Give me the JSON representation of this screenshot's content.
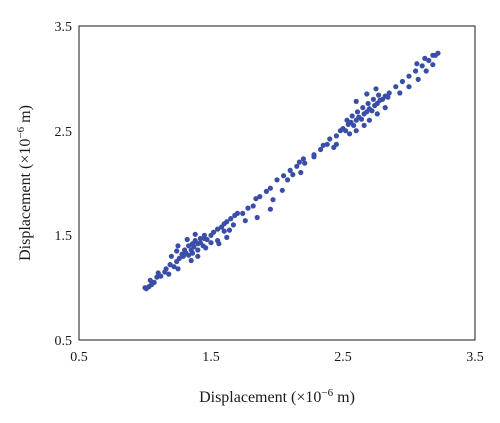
{
  "chart_data": {
    "type": "scatter",
    "title": "",
    "xlabel": "Displacement (×10",
    "ylabel": "Displacement (×10",
    "xlabel_exponent": "−6",
    "ylabel_exponent": "−6",
    "xlabel_unit": " m)",
    "ylabel_unit": " m)",
    "xlim": [
      0.5,
      3.5
    ],
    "ylim": [
      0.5,
      3.5
    ],
    "xticks": [
      "0.5",
      "1.5",
      "2.5",
      "3.5"
    ],
    "yticks": [
      "0.5",
      "1.5",
      "2.5",
      "3.5"
    ],
    "grid": false,
    "legend": "none",
    "marker_color": "#3a4ea8",
    "series": [
      {
        "values": [
          [
            1.0,
            1.0
          ],
          [
            1.01,
            0.99
          ],
          [
            1.03,
            1.01
          ],
          [
            1.05,
            1.03
          ],
          [
            1.04,
            1.07
          ],
          [
            1.07,
            1.05
          ],
          [
            1.09,
            1.1
          ],
          [
            1.12,
            1.11
          ],
          [
            1.1,
            1.14
          ],
          [
            1.16,
            1.18
          ],
          [
            1.19,
            1.22
          ],
          [
            1.22,
            1.2
          ],
          [
            1.24,
            1.25
          ],
          [
            1.26,
            1.28
          ],
          [
            1.29,
            1.3
          ],
          [
            1.31,
            1.33
          ],
          [
            1.33,
            1.31
          ],
          [
            1.35,
            1.36
          ],
          [
            1.37,
            1.39
          ],
          [
            1.4,
            1.42
          ],
          [
            1.42,
            1.43
          ],
          [
            1.45,
            1.47
          ],
          [
            1.47,
            1.46
          ],
          [
            1.5,
            1.5
          ],
          [
            1.52,
            1.53
          ],
          [
            1.55,
            1.56
          ],
          [
            1.58,
            1.58
          ],
          [
            1.6,
            1.61
          ],
          [
            1.62,
            1.63
          ],
          [
            1.65,
            1.66
          ],
          [
            1.68,
            1.69
          ],
          [
            1.7,
            1.71
          ],
          [
            1.3,
            1.36
          ],
          [
            1.33,
            1.4
          ],
          [
            1.36,
            1.42
          ],
          [
            1.38,
            1.45
          ],
          [
            1.42,
            1.47
          ],
          [
            1.45,
            1.5
          ],
          [
            1.28,
            1.32
          ],
          [
            1.36,
            1.33
          ],
          [
            1.4,
            1.36
          ],
          [
            1.44,
            1.4
          ],
          [
            1.5,
            1.43
          ],
          [
            1.2,
            1.3
          ],
          [
            1.24,
            1.35
          ],
          [
            1.15,
            1.15
          ],
          [
            1.18,
            1.13
          ],
          [
            1.25,
            1.18
          ],
          [
            1.46,
            1.38
          ],
          [
            1.55,
            1.45
          ],
          [
            1.6,
            1.54
          ],
          [
            1.64,
            1.55
          ],
          [
            1.67,
            1.6
          ],
          [
            1.74,
            1.71
          ],
          [
            1.78,
            1.76
          ],
          [
            1.84,
            1.85
          ],
          [
            1.87,
            1.87
          ],
          [
            1.92,
            1.92
          ],
          [
            1.95,
            1.95
          ],
          [
            2.0,
            2.03
          ],
          [
            2.05,
            2.07
          ],
          [
            2.1,
            2.12
          ],
          [
            2.15,
            2.16
          ],
          [
            2.2,
            2.23
          ],
          [
            2.28,
            2.27
          ],
          [
            2.35,
            2.36
          ],
          [
            2.4,
            2.42
          ],
          [
            2.45,
            2.45
          ],
          [
            1.76,
            1.64
          ],
          [
            1.82,
            1.78
          ],
          [
            1.85,
            1.67
          ],
          [
            1.95,
            1.75
          ],
          [
            1.97,
            1.84
          ],
          [
            2.04,
            1.93
          ],
          [
            2.08,
            2.03
          ],
          [
            2.12,
            2.08
          ],
          [
            2.18,
            2.1
          ],
          [
            2.17,
            2.2
          ],
          [
            2.21,
            2.19
          ],
          [
            2.28,
            2.25
          ],
          [
            2.33,
            2.32
          ],
          [
            2.38,
            2.37
          ],
          [
            2.45,
            2.37
          ],
          [
            2.43,
            2.34
          ],
          [
            2.48,
            2.5
          ],
          [
            2.5,
            2.52
          ],
          [
            2.52,
            2.5
          ],
          [
            2.54,
            2.56
          ],
          [
            2.56,
            2.58
          ],
          [
            2.58,
            2.55
          ],
          [
            2.6,
            2.6
          ],
          [
            2.62,
            2.63
          ],
          [
            2.64,
            2.61
          ],
          [
            2.66,
            2.66
          ],
          [
            2.68,
            2.68
          ],
          [
            2.7,
            2.71
          ],
          [
            2.72,
            2.69
          ],
          [
            2.74,
            2.74
          ],
          [
            2.76,
            2.76
          ],
          [
            2.78,
            2.79
          ],
          [
            2.8,
            2.8
          ],
          [
            2.82,
            2.83
          ],
          [
            2.84,
            2.82
          ],
          [
            2.85,
            2.86
          ],
          [
            2.53,
            2.6
          ],
          [
            2.57,
            2.64
          ],
          [
            2.61,
            2.68
          ],
          [
            2.65,
            2.72
          ],
          [
            2.69,
            2.76
          ],
          [
            2.73,
            2.8
          ],
          [
            2.77,
            2.84
          ],
          [
            2.55,
            2.47
          ],
          [
            2.6,
            2.5
          ],
          [
            2.66,
            2.55
          ],
          [
            2.7,
            2.6
          ],
          [
            2.76,
            2.66
          ],
          [
            2.82,
            2.72
          ],
          [
            2.9,
            2.92
          ],
          [
            2.95,
            2.97
          ],
          [
            3.0,
            3.02
          ],
          [
            3.05,
            3.07
          ],
          [
            3.1,
            3.12
          ],
          [
            3.15,
            3.17
          ],
          [
            3.2,
            3.22
          ],
          [
            3.22,
            3.24
          ],
          [
            3.18,
            3.22
          ],
          [
            3.12,
            3.19
          ],
          [
            3.06,
            3.14
          ],
          [
            2.93,
            2.86
          ],
          [
            3.0,
            2.92
          ],
          [
            3.07,
            2.99
          ],
          [
            3.13,
            3.07
          ],
          [
            3.18,
            3.13
          ],
          [
            2.6,
            2.78
          ],
          [
            2.68,
            2.85
          ],
          [
            2.75,
            2.9
          ],
          [
            1.25,
            1.4
          ],
          [
            1.32,
            1.46
          ],
          [
            1.38,
            1.51
          ],
          [
            1.56,
            1.42
          ],
          [
            1.62,
            1.48
          ],
          [
            1.35,
            1.26
          ],
          [
            1.4,
            1.3
          ]
        ]
      }
    ]
  }
}
